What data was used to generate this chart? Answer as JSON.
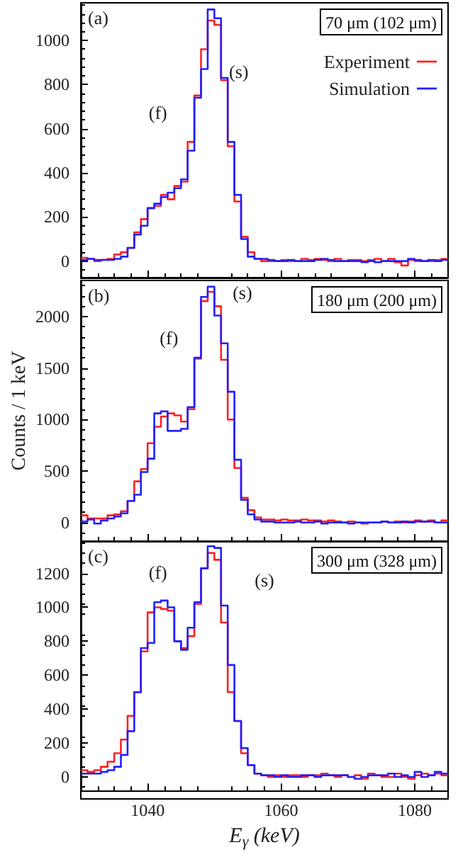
{
  "chart_data": [
    {
      "type": "histogram",
      "bins": [
        1030,
        1031,
        1032,
        1033,
        1034,
        1035,
        1036,
        1037,
        1038,
        1039,
        1040,
        1041,
        1042,
        1043,
        1044,
        1045,
        1046,
        1047,
        1048,
        1049,
        1050,
        1051,
        1052,
        1053,
        1054,
        1055,
        1056,
        1057,
        1058,
        1059,
        1060,
        1061,
        1062,
        1063,
        1064,
        1065,
        1066,
        1067,
        1068,
        1069,
        1070,
        1071,
        1072,
        1073,
        1074,
        1075,
        1076,
        1077,
        1078,
        1079,
        1080,
        1081,
        1082,
        1083,
        1084,
        1085
      ],
      "series": [
        {
          "name": "Experiment",
          "color": "#ff2020",
          "values": [
            15,
            10,
            0,
            5,
            10,
            30,
            40,
            60,
            130,
            190,
            240,
            250,
            300,
            280,
            340,
            360,
            540,
            750,
            960,
            1090,
            1070,
            820,
            520,
            270,
            110,
            40,
            10,
            0,
            0,
            0,
            5,
            0,
            0,
            10,
            5,
            10,
            5,
            0,
            10,
            0,
            5,
            5,
            0,
            5,
            10,
            0,
            10,
            -5,
            -20,
            5,
            0,
            0,
            0,
            5,
            10
          ]
        },
        {
          "name": "Simulation",
          "color": "#2020ff",
          "values": [
            5,
            10,
            5,
            5,
            5,
            10,
            20,
            60,
            120,
            160,
            240,
            260,
            290,
            310,
            330,
            370,
            500,
            740,
            870,
            1140,
            1100,
            830,
            540,
            300,
            100,
            20,
            10,
            10,
            5,
            0,
            0,
            5,
            0,
            0,
            0,
            5,
            10,
            5,
            0,
            0,
            0,
            0,
            -5,
            0,
            -5,
            0,
            0,
            0,
            0,
            10,
            5,
            0,
            5,
            0,
            5
          ]
        }
      ],
      "xlim": [
        1030,
        1085
      ],
      "xticks": [
        1040,
        1060,
        1080
      ],
      "ylim": [
        -75,
        1170
      ],
      "yticks": [
        0,
        200,
        400,
        600,
        800,
        1000
      ],
      "tick_labels": "y",
      "legend": "top right",
      "line_style": "solid",
      "annotations": [
        "(a)",
        "70 μm (102 μm)",
        "(f)",
        "(s)"
      ]
    },
    {
      "type": "histogram",
      "bins": [
        1030,
        1031,
        1032,
        1033,
        1034,
        1035,
        1036,
        1037,
        1038,
        1039,
        1040,
        1041,
        1042,
        1043,
        1044,
        1045,
        1046,
        1047,
        1048,
        1049,
        1050,
        1051,
        1052,
        1053,
        1054,
        1055,
        1056,
        1057,
        1058,
        1059,
        1060,
        1061,
        1062,
        1063,
        1064,
        1065,
        1066,
        1067,
        1068,
        1069,
        1070,
        1071,
        1072,
        1073,
        1074,
        1075,
        1076,
        1077,
        1078,
        1079,
        1080,
        1081,
        1082,
        1083,
        1084,
        1085
      ],
      "series": [
        {
          "color": "#ff2020",
          "values": [
            70,
            40,
            40,
            40,
            70,
            80,
            110,
            210,
            400,
            520,
            770,
            930,
            1030,
            1060,
            1040,
            980,
            1100,
            1590,
            2150,
            2240,
            2100,
            1580,
            1000,
            530,
            240,
            120,
            50,
            30,
            30,
            20,
            30,
            20,
            20,
            30,
            20,
            20,
            10,
            20,
            10,
            0,
            10,
            0,
            -10,
            0,
            0,
            10,
            0,
            10,
            0,
            10,
            20,
            10,
            20,
            0,
            20
          ]
        },
        {
          "color": "#2020ff",
          "values": [
            10,
            30,
            -10,
            20,
            40,
            60,
            90,
            210,
            270,
            490,
            620,
            1060,
            1080,
            890,
            890,
            910,
            1120,
            1600,
            2190,
            2290,
            2010,
            1740,
            1270,
            610,
            220,
            80,
            30,
            10,
            10,
            0,
            0,
            0,
            10,
            0,
            0,
            10,
            -10,
            0,
            0,
            0,
            -10,
            0,
            0,
            0,
            0,
            10,
            0,
            0,
            10,
            0,
            10,
            10,
            10,
            0,
            0
          ]
        }
      ],
      "xlim": [
        1030,
        1085
      ],
      "xticks": [
        1040,
        1060,
        1080
      ],
      "ylim": [
        -180,
        2350
      ],
      "yticks": [
        0,
        500,
        1000,
        1500,
        2000
      ],
      "ylabel": "Counts / 1 keV",
      "tick_labels": "y",
      "line_style": "solid",
      "annotations": [
        "(b)",
        "180 μm (200 μm)",
        "(f)",
        "(s)"
      ]
    },
    {
      "type": "histogram",
      "bins": [
        1030,
        1031,
        1032,
        1033,
        1034,
        1035,
        1036,
        1037,
        1038,
        1039,
        1040,
        1041,
        1042,
        1043,
        1044,
        1045,
        1046,
        1047,
        1048,
        1049,
        1050,
        1051,
        1052,
        1053,
        1054,
        1055,
        1056,
        1057,
        1058,
        1059,
        1060,
        1061,
        1062,
        1063,
        1064,
        1065,
        1066,
        1067,
        1068,
        1069,
        1070,
        1071,
        1072,
        1073,
        1074,
        1075,
        1076,
        1077,
        1078,
        1079,
        1080,
        1081,
        1082,
        1083,
        1084,
        1085
      ],
      "series": [
        {
          "color": "#ff2020",
          "values": [
            40,
            30,
            40,
            60,
            90,
            140,
            220,
            360,
            500,
            740,
            970,
            1000,
            990,
            980,
            800,
            760,
            830,
            1020,
            1230,
            1320,
            1280,
            910,
            500,
            330,
            140,
            70,
            20,
            10,
            0,
            10,
            0,
            10,
            10,
            0,
            10,
            10,
            20,
            10,
            0,
            10,
            0,
            10,
            -10,
            20,
            10,
            0,
            0,
            20,
            0,
            -10,
            10,
            20,
            10,
            20,
            10
          ]
        },
        {
          "color": "#2020ff",
          "values": [
            20,
            20,
            20,
            30,
            40,
            60,
            130,
            270,
            500,
            760,
            790,
            1030,
            1040,
            1000,
            800,
            750,
            880,
            1030,
            1230,
            1360,
            1350,
            1010,
            660,
            330,
            170,
            70,
            20,
            10,
            10,
            0,
            10,
            0,
            0,
            10,
            10,
            0,
            10,
            10,
            10,
            10,
            0,
            -10,
            0,
            10,
            10,
            10,
            20,
            0,
            10,
            0,
            30,
            0,
            10,
            30,
            20
          ]
        }
      ],
      "xlim": [
        1030,
        1085
      ],
      "xticks": [
        1040,
        1060,
        1080
      ],
      "ylim": [
        -80,
        1390
      ],
      "yticks": [
        0,
        200,
        400,
        600,
        800,
        1000,
        1200
      ],
      "xlabel": "E$_{γ}$ (keV)",
      "line_style": "solid",
      "annotations": [
        "(c)",
        "300 μm (328 μm)",
        "(f)",
        "(s)"
      ]
    }
  ]
}
